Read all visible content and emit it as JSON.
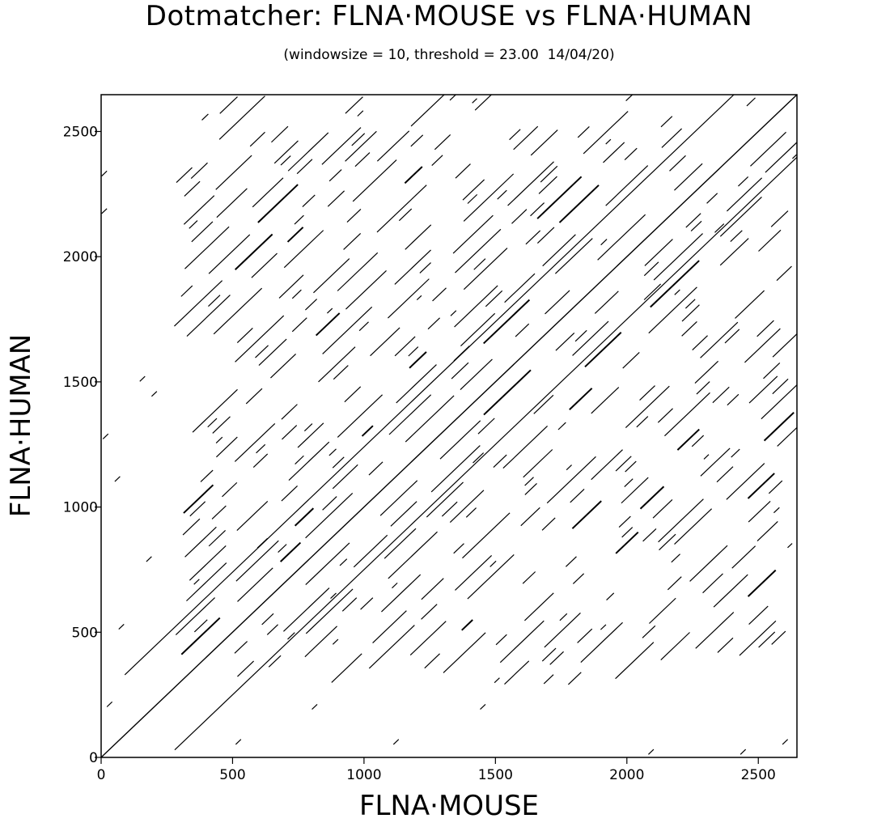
{
  "chart_data": {
    "type": "scatter",
    "title": "Dotmatcher: FLNA·MOUSE vs FLNA·HUMAN",
    "subtitle": "(windowsize = 10, threshold = 23.00  14/04/20)",
    "xlabel": "FLNA·MOUSE",
    "ylabel": "FLNA·HUMAN",
    "xlim": [
      0,
      2647
    ],
    "ylim": [
      0,
      2647
    ],
    "xticks": [
      0,
      500,
      1000,
      1500,
      2000,
      2500
    ],
    "yticks": [
      0,
      500,
      1000,
      1500,
      2000,
      2500
    ],
    "xtick_labels": [
      "0",
      "500",
      "1000",
      "1500",
      "2000",
      "2500"
    ],
    "ytick_labels": [
      "0",
      "500",
      "1000",
      "1500",
      "2000",
      "2500"
    ],
    "grid": false,
    "line_color": "#000000",
    "main_diagonal": {
      "x": [
        0,
        2647
      ],
      "y": [
        0,
        2647
      ]
    },
    "offset_diagonals": [
      {
        "offset": -250,
        "x": [
          280,
          2647
        ],
        "y": [
          30,
          2397
        ]
      },
      {
        "offset": 240,
        "x": [
          90,
          2407
        ],
        "y": [
          330,
          2647
        ]
      }
    ],
    "repeat_region": {
      "x": [
        280,
        2647
      ],
      "y": [
        280,
        2647
      ]
    },
    "isolated_matches": [
      {
        "x": 30,
        "y": 210
      },
      {
        "x": 75,
        "y": 520
      },
      {
        "x": 60,
        "y": 1110
      },
      {
        "x": 180,
        "y": 790
      },
      {
        "x": 200,
        "y": 1450
      },
      {
        "x": 155,
        "y": 1510
      },
      {
        "x": 15,
        "y": 1280
      },
      {
        "x": 10,
        "y": 2330
      },
      {
        "x": 10,
        "y": 2180
      },
      {
        "x": 520,
        "y": 60
      },
      {
        "x": 1120,
        "y": 60
      },
      {
        "x": 1450,
        "y": 200
      },
      {
        "x": 810,
        "y": 200
      },
      {
        "x": 2090,
        "y": 20
      },
      {
        "x": 2440,
        "y": 20
      },
      {
        "x": 2600,
        "y": 60
      }
    ]
  }
}
